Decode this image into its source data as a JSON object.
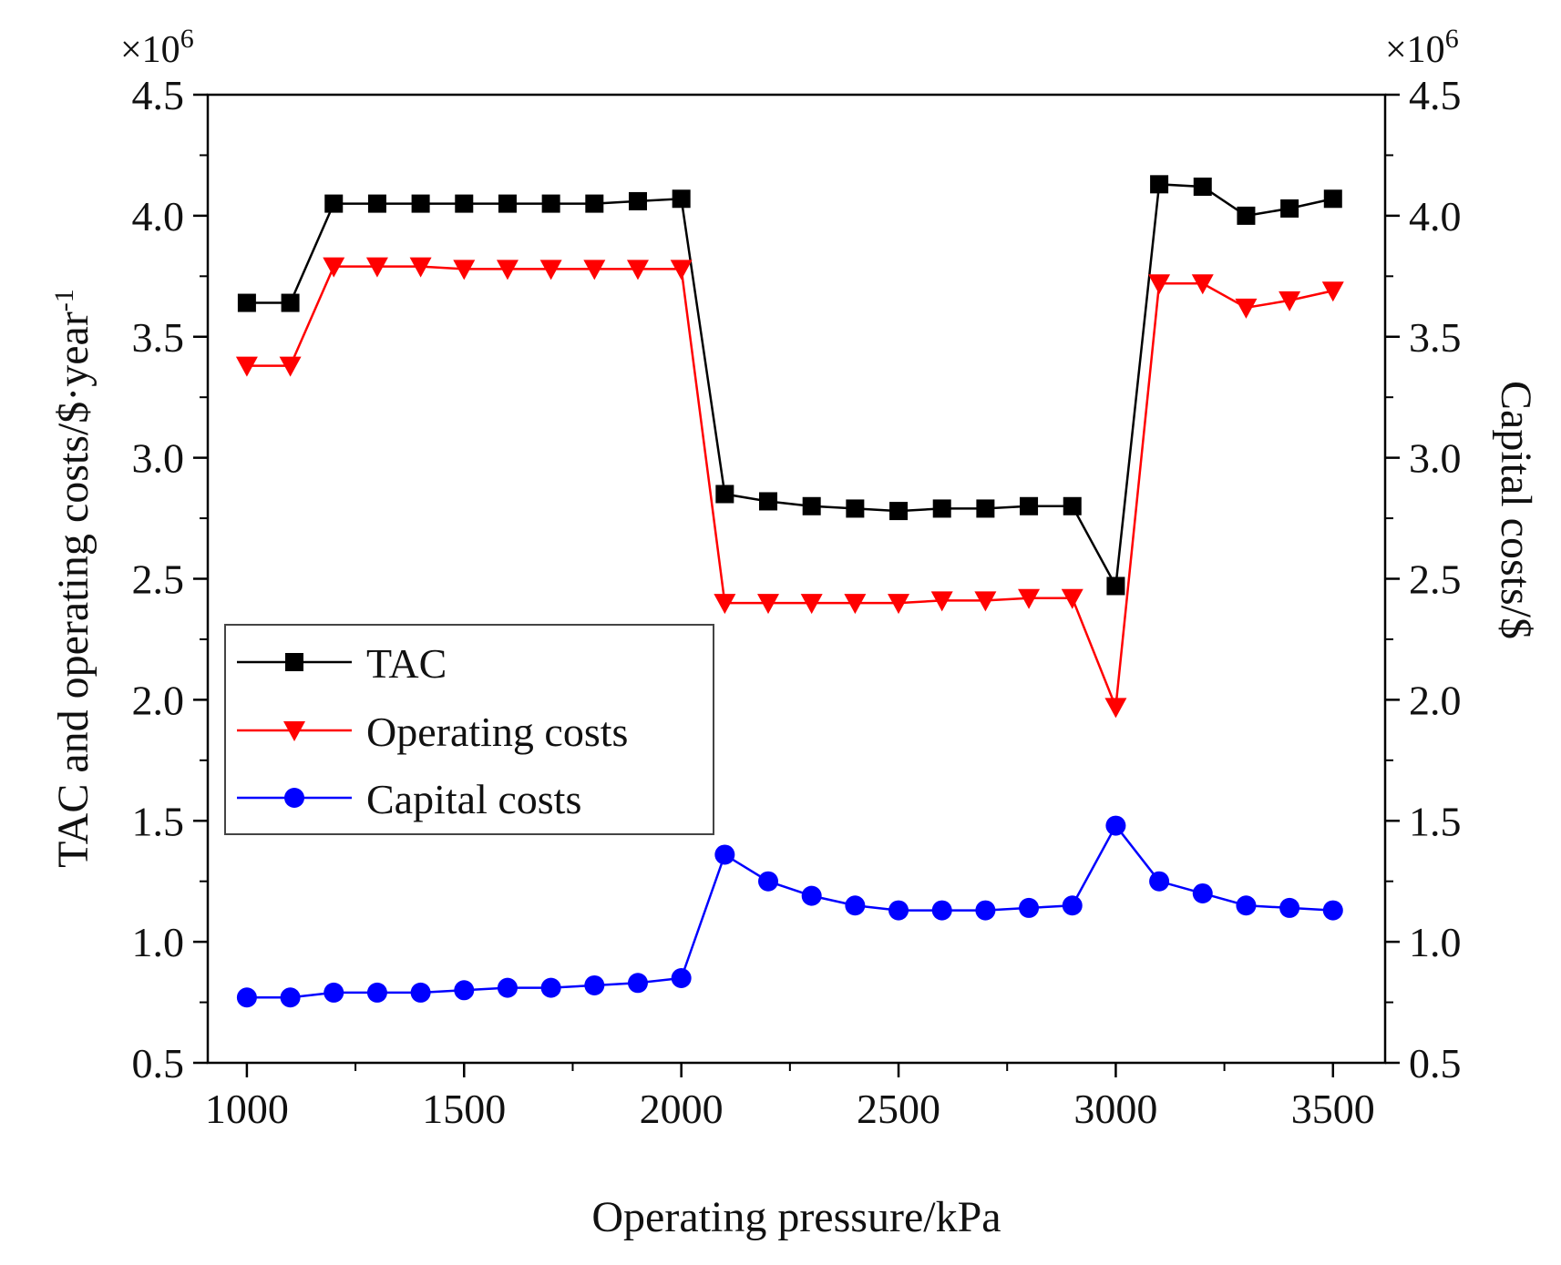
{
  "chart_data": {
    "type": "line",
    "x": [
      1000,
      1100,
      1200,
      1300,
      1400,
      1500,
      1600,
      1700,
      1800,
      1900,
      2000,
      2100,
      2200,
      2300,
      2400,
      2500,
      2600,
      2700,
      2800,
      2900,
      3000,
      3100,
      3200,
      3300,
      3400,
      3500
    ],
    "series": [
      {
        "name": "TAC",
        "axis": "left",
        "color": "#000000",
        "marker": "square",
        "values": [
          3.64,
          3.64,
          4.05,
          4.05,
          4.05,
          4.05,
          4.05,
          4.05,
          4.05,
          4.06,
          4.07,
          2.85,
          2.82,
          2.8,
          2.79,
          2.78,
          2.79,
          2.79,
          2.8,
          2.8,
          2.47,
          4.13,
          4.12,
          4.0,
          4.03,
          4.07
        ]
      },
      {
        "name": "Operating costs",
        "axis": "left",
        "color": "#ff0000",
        "marker": "triangle-down",
        "values": [
          3.38,
          3.38,
          3.79,
          3.79,
          3.79,
          3.78,
          3.78,
          3.78,
          3.78,
          3.78,
          3.78,
          2.4,
          2.4,
          2.4,
          2.4,
          2.4,
          2.41,
          2.41,
          2.42,
          2.42,
          1.97,
          3.72,
          3.72,
          3.62,
          3.65,
          3.69
        ]
      },
      {
        "name": "Capital costs",
        "axis": "right",
        "color": "#0000ff",
        "marker": "circle",
        "values": [
          0.77,
          0.77,
          0.79,
          0.79,
          0.79,
          0.8,
          0.81,
          0.81,
          0.82,
          0.83,
          0.85,
          1.36,
          1.25,
          1.19,
          1.15,
          1.13,
          1.13,
          1.13,
          1.14,
          1.15,
          1.48,
          1.25,
          1.2,
          1.15,
          1.14,
          1.13
        ]
      }
    ],
    "xlabel": "Operating pressure/kPa",
    "ylabel_left_prefix": "TAC and operating costs/$·year",
    "ylabel_left_superscript": "-1",
    "ylabel_right": "Capital costs/$",
    "multiplier_left": "×10",
    "multiplier_right": "×10",
    "multiplier_exponent": "6",
    "xlim": [
      910,
      3620
    ],
    "ylim": [
      0.5,
      4.5
    ],
    "y2lim": [
      0.5,
      4.5
    ],
    "x_ticks": [
      1000,
      1500,
      2000,
      2500,
      3000,
      3500
    ],
    "x_tick_labels": [
      "1000",
      "1500",
      "2000",
      "2500",
      "3000",
      "3500"
    ],
    "y_ticks": [
      0.5,
      1.0,
      1.5,
      2.0,
      2.5,
      3.0,
      3.5,
      4.0,
      4.5
    ],
    "y_tick_labels": [
      "0.5",
      "1.0",
      "1.5",
      "2.0",
      "2.5",
      "3.0",
      "3.5",
      "4.0",
      "4.5"
    ],
    "legend_position": "center-left",
    "grid": false
  }
}
